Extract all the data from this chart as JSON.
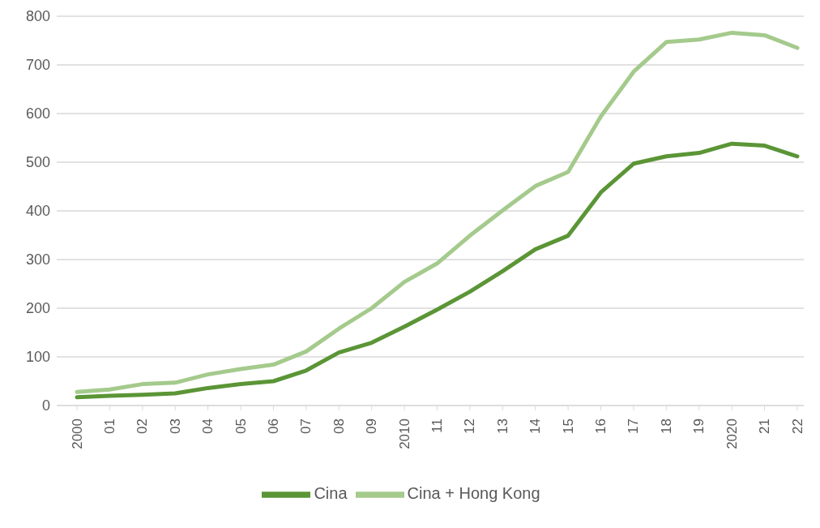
{
  "chart_data": {
    "type": "line",
    "categories": [
      "2000",
      "01",
      "02",
      "03",
      "04",
      "05",
      "06",
      "07",
      "08",
      "09",
      "2010",
      "11",
      "12",
      "13",
      "14",
      "15",
      "16",
      "17",
      "18",
      "19",
      "2020",
      "21",
      "22"
    ],
    "series": [
      {
        "name": "Cina",
        "color": "#5b9536",
        "values": [
          17,
          20,
          22,
          25,
          36,
          44,
          50,
          72,
          109,
          129,
          162,
          197,
          234,
          276,
          321,
          349,
          438,
          497,
          512,
          519,
          538,
          534,
          512
        ]
      },
      {
        "name": "Cina + Hong Kong",
        "color": "#a4ca8c",
        "values": [
          28,
          33,
          44,
          47,
          64,
          75,
          84,
          111,
          158,
          200,
          254,
          292,
          349,
          401,
          451,
          480,
          594,
          686,
          747,
          752,
          766,
          761,
          735
        ]
      }
    ],
    "ylim": [
      0,
      800
    ],
    "yticks": [
      0,
      100,
      200,
      300,
      400,
      500,
      600,
      700,
      800
    ],
    "grid": "y",
    "legend": "bottom",
    "marker": "none",
    "line_style": "solid"
  }
}
